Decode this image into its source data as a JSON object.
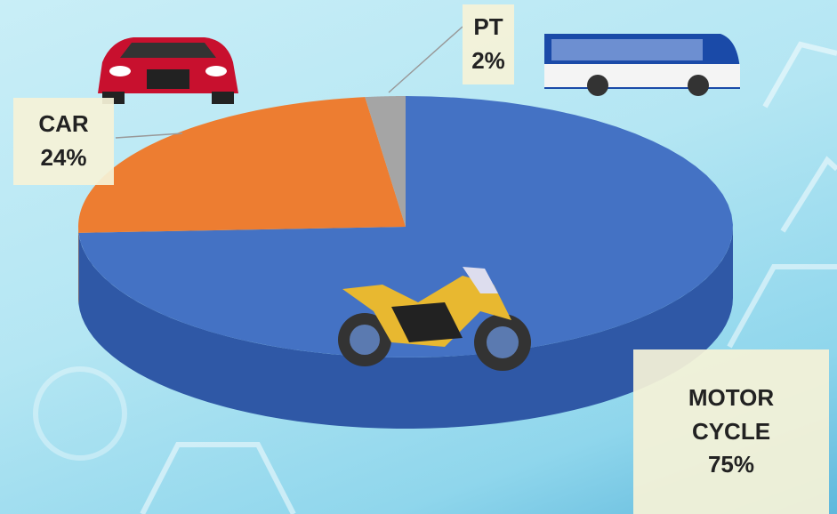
{
  "chart_data": {
    "type": "pie",
    "categories": [
      "MOTOR CYCLE",
      "CAR",
      "PT"
    ],
    "values": [
      75,
      24,
      2
    ],
    "value_labels": [
      "75%",
      "24%",
      "2%"
    ],
    "colors": [
      "#4472c4",
      "#ed7d31",
      "#a5a5a5"
    ],
    "side_colors": [
      "#2f58a6",
      "#c4621e",
      "#7f7f7f"
    ]
  }
}
